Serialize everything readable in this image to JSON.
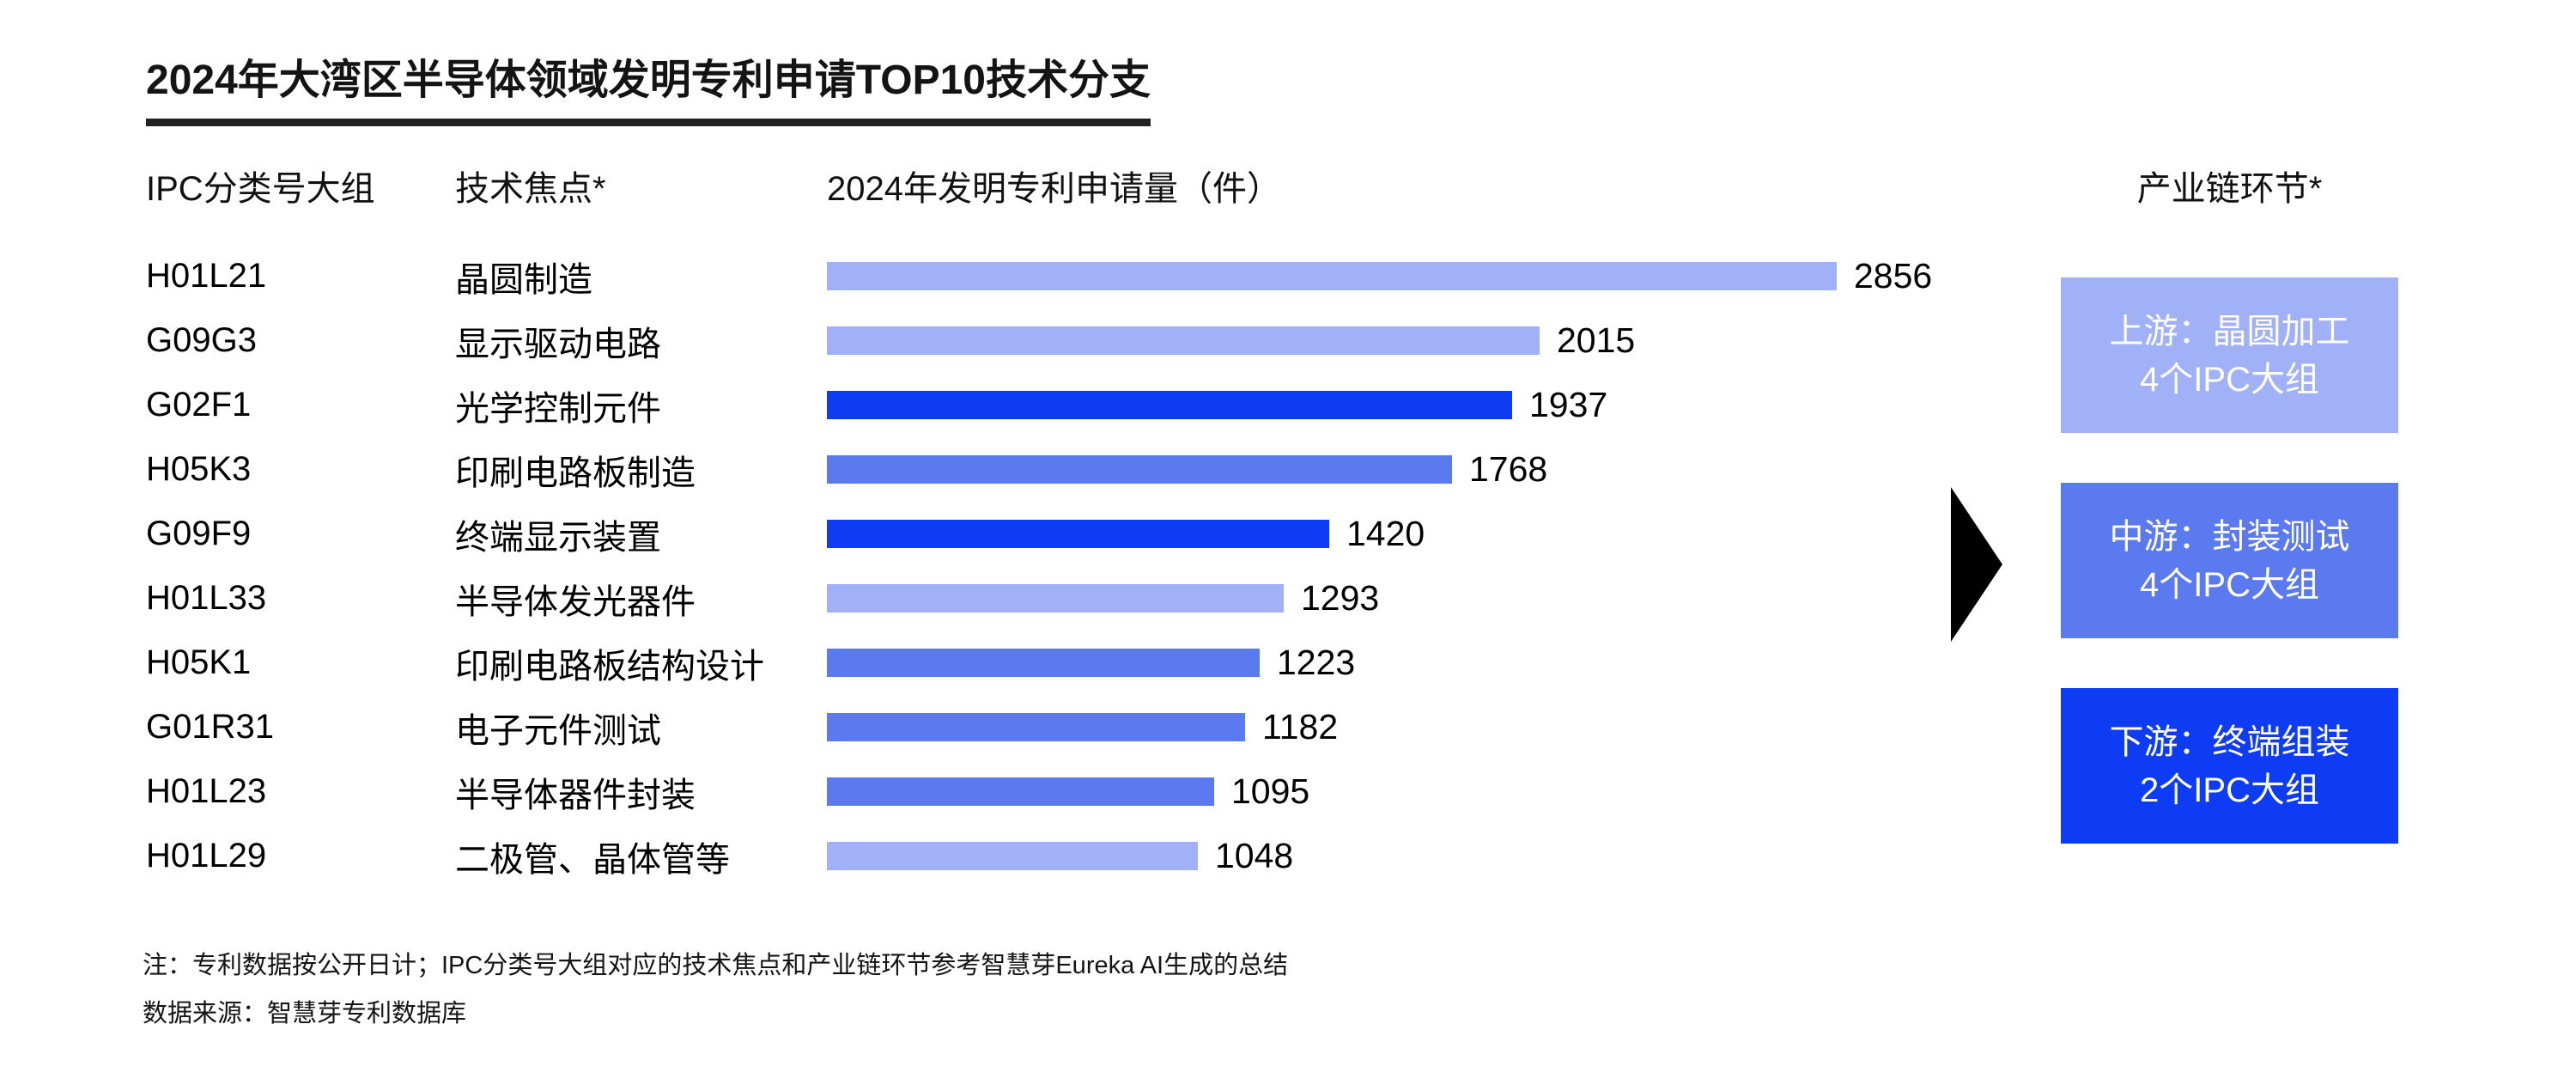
{
  "title": "2024年大湾区半导体领域发明专利申请TOP10技术分支",
  "columns": {
    "ipc": "IPC分类号大组",
    "focus": "技术焦点*",
    "volume": "2024年发明专利申请量（件）",
    "chain": "产业链环节*"
  },
  "chart_data": {
    "type": "bar",
    "orientation": "horizontal",
    "title": "2024年大湾区半导体领域发明专利申请TOP10技术分支",
    "value_label": "2024年发明专利申请量（件）",
    "max_value": 2856,
    "rows": [
      {
        "ipc": "H01L21",
        "focus": "晶圆制造",
        "value": 2856,
        "group": "upstream"
      },
      {
        "ipc": "G09G3",
        "focus": "显示驱动电路",
        "value": 2015,
        "group": "upstream"
      },
      {
        "ipc": "G02F1",
        "focus": "光学控制元件",
        "value": 1937,
        "group": "downstream"
      },
      {
        "ipc": "H05K3",
        "focus": "印刷电路板制造",
        "value": 1768,
        "group": "midstream"
      },
      {
        "ipc": "G09F9",
        "focus": "终端显示装置",
        "value": 1420,
        "group": "downstream"
      },
      {
        "ipc": "H01L33",
        "focus": "半导体发光器件",
        "value": 1293,
        "group": "upstream"
      },
      {
        "ipc": "H05K1",
        "focus": "印刷电路板结构设计",
        "value": 1223,
        "group": "midstream"
      },
      {
        "ipc": "G01R31",
        "focus": "电子元件测试",
        "value": 1182,
        "group": "midstream"
      },
      {
        "ipc": "H01L23",
        "focus": "半导体器件封装",
        "value": 1095,
        "group": "midstream"
      },
      {
        "ipc": "H01L29",
        "focus": "二极管、晶体管等",
        "value": 1048,
        "group": "upstream"
      }
    ]
  },
  "groups": {
    "upstream": {
      "color": "#A0B1F8"
    },
    "midstream": {
      "color": "#5C7AEF"
    },
    "downstream": {
      "color": "#0E3CF4"
    }
  },
  "chain_boxes": [
    {
      "line1": "上游：晶圆加工",
      "line2": "4个IPC大组",
      "group": "upstream",
      "color": "#A0B1F8"
    },
    {
      "line1": "中游：封装测试",
      "line2": "4个IPC大组",
      "group": "midstream",
      "color": "#5C7AEF"
    },
    {
      "line1": "下游：终端组装",
      "line2": "2个IPC大组",
      "group": "downstream",
      "color": "#0E3CF4"
    }
  ],
  "notes": [
    "注：专利数据按公开日计；IPC分类号大组对应的技术焦点和产业链环节参考智慧芽Eureka AI生成的总结",
    "数据来源：智慧芽专利数据库"
  ]
}
